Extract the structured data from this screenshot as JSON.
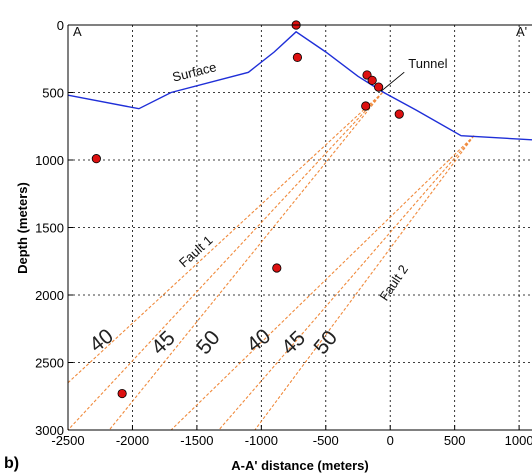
{
  "chart_data": {
    "type": "line",
    "panel_label": "b)",
    "xlabel": "A-A' distance (meters)",
    "ylabel": "Depth (meters)",
    "xlim": [
      -2500,
      1100
    ],
    "ylim": [
      0,
      3000
    ],
    "y_inverted": true,
    "grid": true,
    "x_ticks": [
      -2500,
      -2000,
      -1500,
      -1000,
      -500,
      0,
      500,
      1000
    ],
    "y_ticks": [
      0,
      500,
      1000,
      1500,
      2000,
      2500,
      3000
    ],
    "section_labels": {
      "left": "A",
      "right": "A'"
    },
    "colors": {
      "surface": "#1f2fd8",
      "faults": "#f08a3c",
      "points": "#dd1111"
    },
    "series": [
      {
        "name": "Surface",
        "x": [
          -2500,
          -1950,
          -1700,
          -1100,
          -900,
          -730,
          -500,
          -250,
          -50,
          200,
          550,
          1100
        ],
        "y": [
          520,
          620,
          500,
          350,
          200,
          50,
          200,
          380,
          500,
          630,
          820,
          850
        ]
      }
    ],
    "scatter_points": {
      "x": [
        -730,
        -720,
        -180,
        -140,
        -90,
        -190,
        70,
        -2280,
        -880,
        -2080
      ],
      "y": [
        0,
        240,
        370,
        410,
        460,
        600,
        660,
        990,
        1800,
        2730
      ]
    },
    "fault_lines": [
      {
        "group": "Fault 1",
        "dip": "40",
        "from": [
          -60,
          500
        ],
        "to": [
          -2500,
          2650
        ]
      },
      {
        "group": "Fault 1",
        "dip": "45",
        "from": [
          -60,
          500
        ],
        "to": [
          -2500,
          3000
        ]
      },
      {
        "group": "Fault 1",
        "dip": "50",
        "from": [
          -60,
          500
        ],
        "to": [
          -2180,
          3000
        ]
      },
      {
        "group": "Fault 2",
        "dip": "40",
        "from": [
          650,
          820
        ],
        "to": [
          -1700,
          3000
        ]
      },
      {
        "group": "Fault 2",
        "dip": "45",
        "from": [
          650,
          820
        ],
        "to": [
          -1330,
          3000
        ]
      },
      {
        "group": "Fault 2",
        "dip": "50",
        "from": [
          650,
          820
        ],
        "to": [
          -1050,
          3000
        ]
      }
    ],
    "annotations": [
      {
        "text": "Surface",
        "x": -1680,
        "y": 420,
        "rotate": -14,
        "kind": "label"
      },
      {
        "text": "Tunnel",
        "x": 140,
        "y": 320,
        "kind": "label",
        "arrow_to": [
          -70,
          490
        ]
      },
      {
        "text": "Fault 1",
        "x": -1600,
        "y": 1800,
        "rotate": -42,
        "kind": "label"
      },
      {
        "text": "Fault 2",
        "x": -30,
        "y": 2050,
        "rotate": -56,
        "kind": "label"
      },
      {
        "text": "40",
        "x": -2280,
        "y": 2430,
        "rotate": -38,
        "kind": "angle"
      },
      {
        "text": "45",
        "x": -1790,
        "y": 2450,
        "rotate": -44,
        "kind": "angle"
      },
      {
        "text": "50",
        "x": -1430,
        "y": 2450,
        "rotate": -50,
        "kind": "angle"
      },
      {
        "text": "40",
        "x": -1060,
        "y": 2430,
        "rotate": -38,
        "kind": "angle"
      },
      {
        "text": "45",
        "x": -780,
        "y": 2450,
        "rotate": -44,
        "kind": "angle"
      },
      {
        "text": "50",
        "x": -520,
        "y": 2450,
        "rotate": -50,
        "kind": "angle"
      }
    ]
  }
}
